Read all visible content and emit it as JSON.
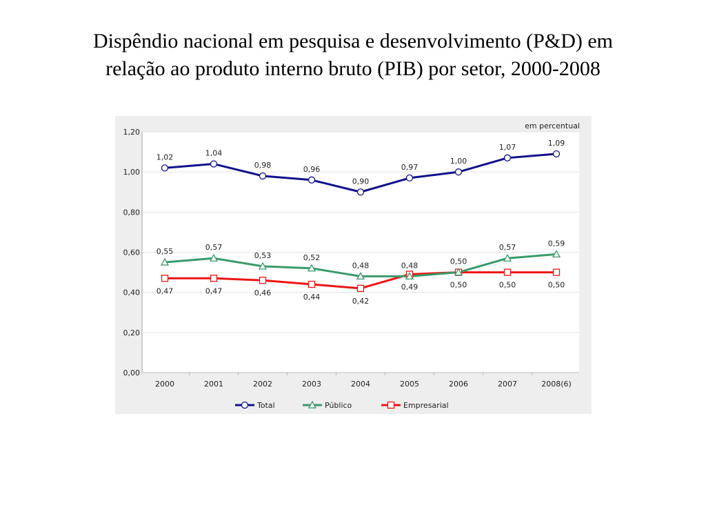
{
  "slide": {
    "title_line1": "Dispêndio nacional em pesquisa e desenvolvimento (P&D) em",
    "title_line2": "relação ao produto interno bruto (PIB) por setor, 2000-2008"
  },
  "chart_data": {
    "type": "line",
    "unit_note": "em percentual",
    "categories": [
      "2000",
      "2001",
      "2002",
      "2003",
      "2004",
      "2005",
      "2006",
      "2007",
      "2008(6)"
    ],
    "ylim": [
      0,
      1.2
    ],
    "yticks": [
      0,
      0.2,
      0.4,
      0.6,
      0.8,
      1.0,
      1.2
    ],
    "ytick_labels": [
      "0,00",
      "0,20",
      "0,40",
      "0,60",
      "0,80",
      "1,00",
      "1,20"
    ],
    "grid": true,
    "legend_position": "bottom",
    "series": [
      {
        "name": "Total",
        "color": "#10108a",
        "marker": "circle",
        "label_pos": "above",
        "values": [
          1.02,
          1.04,
          0.98,
          0.96,
          0.9,
          0.97,
          1.0,
          1.07,
          1.09
        ],
        "labels": [
          "1,02",
          "1,04",
          "0,98",
          "0,96",
          "0,90",
          "0,97",
          "1,00",
          "1,07",
          "1,09"
        ]
      },
      {
        "name": "Público",
        "color": "#3a9a6a",
        "marker": "triangle",
        "label_pos": "above",
        "values": [
          0.55,
          0.57,
          0.53,
          0.52,
          0.48,
          0.48,
          0.5,
          0.57,
          0.59
        ],
        "labels": [
          "0,55",
          "0,57",
          "0,53",
          "0,52",
          "0,48",
          "0,48",
          "0,50",
          "0,57",
          "0,59"
        ]
      },
      {
        "name": "Empresarial",
        "color": "#ee1414",
        "marker": "square",
        "label_pos": "below",
        "values": [
          0.47,
          0.47,
          0.46,
          0.44,
          0.42,
          0.49,
          0.5,
          0.5,
          0.5
        ],
        "labels": [
          "0,47",
          "0,47",
          "0,46",
          "0,44",
          "0,42",
          "0,49",
          "0,50",
          "0,50",
          "0,50"
        ]
      }
    ]
  }
}
